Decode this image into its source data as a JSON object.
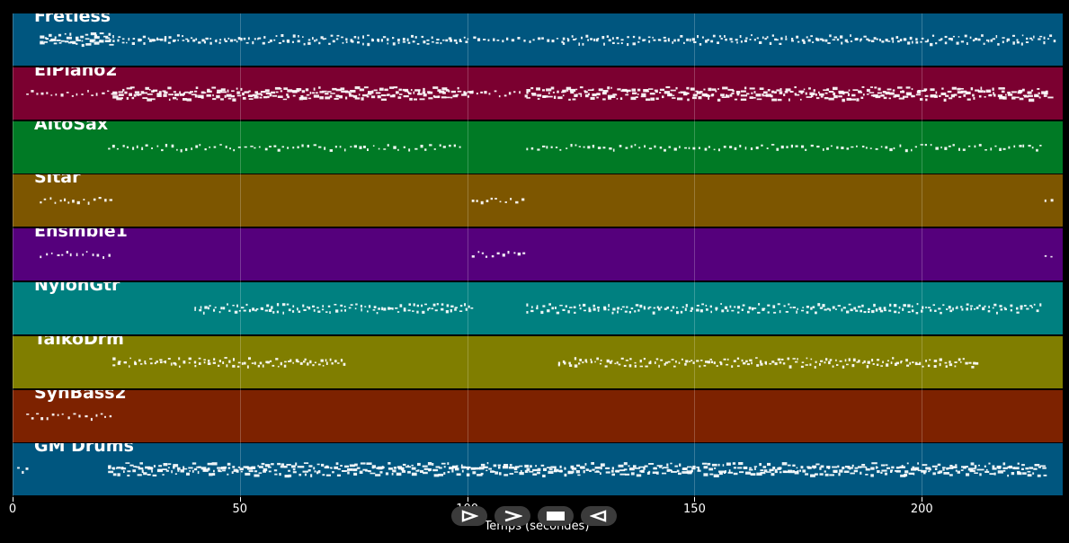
{
  "timeline": {
    "xlabel": "Temps (secondes)",
    "x_range": [
      0,
      231
    ],
    "ticks": [
      "0",
      "50",
      "100",
      "150",
      "200"
    ],
    "tick_values": [
      0,
      50,
      100,
      150,
      200
    ]
  },
  "tracks": [
    {
      "name": "Fretless",
      "color": "#00567f",
      "regions": [
        [
          6,
          22
        ],
        [
          22,
          100
        ],
        [
          100,
          121
        ],
        [
          121,
          229
        ]
      ],
      "density": [
        3,
        2,
        1,
        2
      ]
    },
    {
      "name": "ElPiano2",
      "color": "#7b0030",
      "regions": [
        [
          3,
          22
        ],
        [
          22,
          101
        ],
        [
          101,
          113
        ],
        [
          113,
          228
        ]
      ],
      "density": [
        1,
        3,
        1,
        3
      ]
    },
    {
      "name": "AltoSax",
      "color": "#007a25",
      "regions": [
        [
          21,
          99
        ],
        [
          113,
          226
        ]
      ],
      "density": [
        1,
        1
      ]
    },
    {
      "name": "Sitar",
      "color": "#7d5600",
      "regions": [
        [
          6,
          22
        ],
        [
          101,
          113
        ],
        [
          227,
          229
        ]
      ],
      "density": [
        1,
        1,
        1
      ]
    },
    {
      "name": "Ensmble1",
      "color": "#55007c",
      "regions": [
        [
          6,
          22
        ],
        [
          101,
          113
        ],
        [
          227,
          229
        ]
      ],
      "density": [
        1,
        1,
        1
      ]
    },
    {
      "name": "NylonGtr",
      "color": "#008080",
      "regions": [
        [
          40,
          101
        ],
        [
          113,
          226
        ]
      ],
      "density": [
        2,
        2
      ]
    },
    {
      "name": "TaikoDrm",
      "color": "#807e00",
      "regions": [
        [
          22,
          73
        ],
        [
          120,
          212
        ]
      ],
      "density": [
        2,
        2
      ]
    },
    {
      "name": "SynBass2",
      "color": "#7d2200",
      "regions": [
        [
          3,
          22
        ]
      ],
      "density": [
        1
      ]
    },
    {
      "name": "GM Drums",
      "color": "#00567f",
      "regions": [
        [
          1,
          3
        ],
        [
          21,
          227
        ]
      ],
      "density": [
        1,
        3
      ]
    }
  ],
  "transport": [
    {
      "name": "play-icon"
    },
    {
      "name": "fast-forward-icon"
    },
    {
      "name": "stop-icon"
    },
    {
      "name": "rewind-icon"
    }
  ]
}
